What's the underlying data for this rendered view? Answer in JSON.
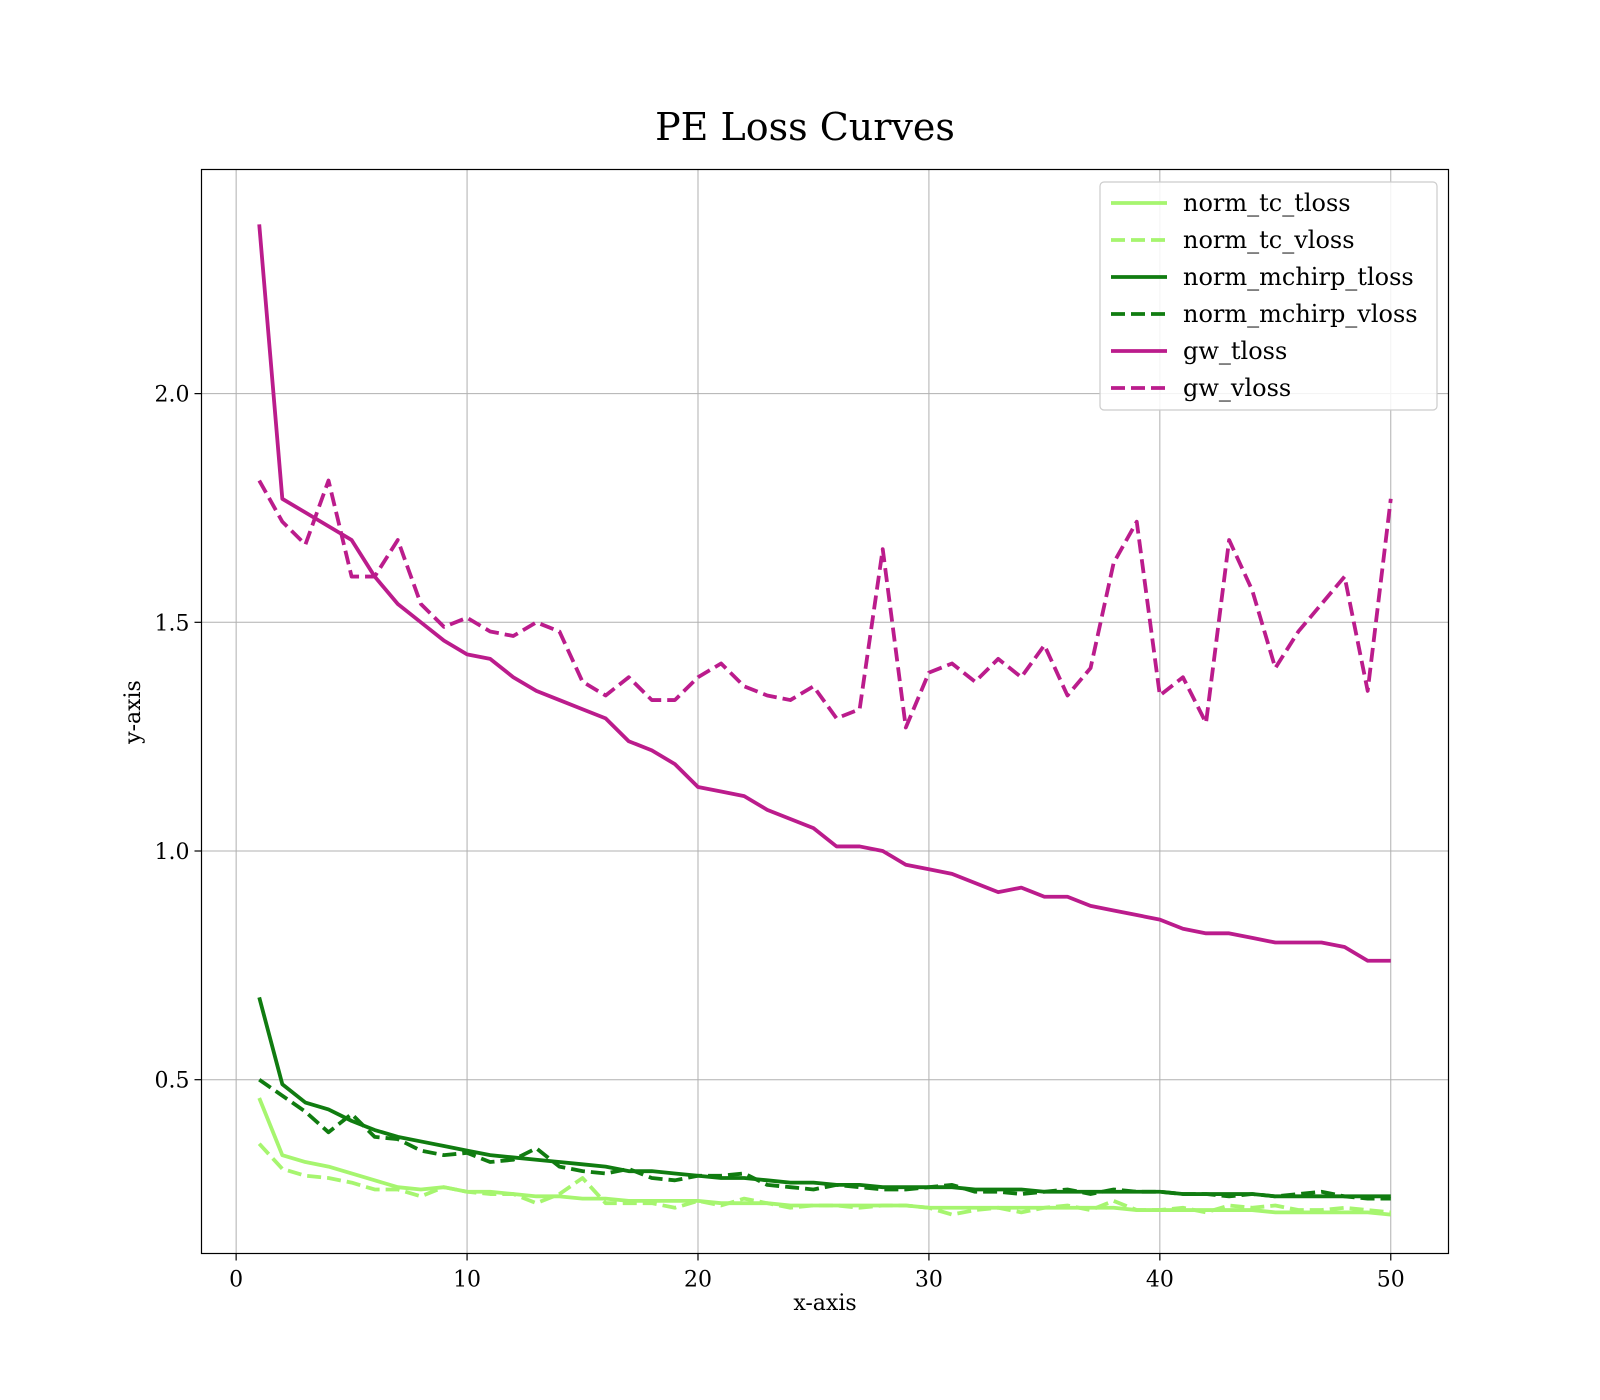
{
  "chart_data": {
    "type": "line",
    "title": "PE Loss Curves",
    "xlabel": "x-axis",
    "ylabel": "y-axis",
    "xlim": [
      -1.5,
      52.5
    ],
    "ylim": [
      0.12,
      2.49
    ],
    "grid": true,
    "legend_placement": "top-right",
    "x_ticks": [
      0,
      10,
      20,
      30,
      40,
      50
    ],
    "y_ticks": [
      0.5,
      1.0,
      1.5,
      2.0
    ],
    "x": [
      1,
      2,
      3,
      4,
      5,
      6,
      7,
      8,
      9,
      10,
      11,
      12,
      13,
      14,
      15,
      16,
      17,
      18,
      19,
      20,
      21,
      22,
      23,
      24,
      25,
      26,
      27,
      28,
      29,
      30,
      31,
      32,
      33,
      34,
      35,
      36,
      37,
      38,
      39,
      40,
      41,
      42,
      43,
      44,
      45,
      46,
      47,
      48,
      49,
      50
    ],
    "series": [
      {
        "name": "norm_tc_tloss",
        "color": "#a6f56f",
        "dash": "solid",
        "values": [
          0.46,
          0.335,
          0.32,
          0.31,
          0.295,
          0.28,
          0.265,
          0.26,
          0.265,
          0.255,
          0.255,
          0.25,
          0.245,
          0.245,
          0.24,
          0.24,
          0.235,
          0.235,
          0.235,
          0.235,
          0.23,
          0.23,
          0.23,
          0.225,
          0.225,
          0.225,
          0.225,
          0.225,
          0.225,
          0.22,
          0.22,
          0.22,
          0.22,
          0.22,
          0.22,
          0.22,
          0.22,
          0.22,
          0.215,
          0.215,
          0.215,
          0.215,
          0.215,
          0.215,
          0.21,
          0.21,
          0.21,
          0.21,
          0.21,
          0.205
        ]
      },
      {
        "name": "norm_tc_vloss",
        "color": "#a6f56f",
        "dash": "dashed",
        "values": [
          0.36,
          0.305,
          0.29,
          0.285,
          0.275,
          0.26,
          0.26,
          0.245,
          0.265,
          0.255,
          0.25,
          0.25,
          0.23,
          0.25,
          0.285,
          0.23,
          0.23,
          0.23,
          0.22,
          0.235,
          0.225,
          0.24,
          0.23,
          0.22,
          0.225,
          0.225,
          0.22,
          0.225,
          0.225,
          0.22,
          0.205,
          0.215,
          0.22,
          0.21,
          0.22,
          0.225,
          0.215,
          0.235,
          0.215,
          0.215,
          0.22,
          0.21,
          0.225,
          0.22,
          0.225,
          0.215,
          0.215,
          0.22,
          0.215,
          0.21
        ]
      },
      {
        "name": "norm_mchirp_tloss",
        "color": "#107c10",
        "dash": "solid",
        "values": [
          0.68,
          0.49,
          0.45,
          0.435,
          0.41,
          0.39,
          0.375,
          0.365,
          0.355,
          0.345,
          0.335,
          0.33,
          0.325,
          0.32,
          0.315,
          0.31,
          0.3,
          0.3,
          0.295,
          0.29,
          0.285,
          0.285,
          0.28,
          0.275,
          0.275,
          0.27,
          0.27,
          0.265,
          0.265,
          0.265,
          0.265,
          0.26,
          0.26,
          0.26,
          0.255,
          0.255,
          0.255,
          0.255,
          0.255,
          0.255,
          0.25,
          0.25,
          0.25,
          0.25,
          0.245,
          0.245,
          0.245,
          0.245,
          0.245,
          0.245
        ]
      },
      {
        "name": "norm_mchirp_vloss",
        "color": "#107c10",
        "dash": "dashed",
        "values": [
          0.5,
          0.465,
          0.43,
          0.385,
          0.425,
          0.375,
          0.37,
          0.345,
          0.335,
          0.34,
          0.32,
          0.325,
          0.35,
          0.31,
          0.3,
          0.295,
          0.305,
          0.285,
          0.28,
          0.29,
          0.29,
          0.295,
          0.27,
          0.265,
          0.26,
          0.27,
          0.265,
          0.26,
          0.26,
          0.265,
          0.27,
          0.255,
          0.255,
          0.25,
          0.255,
          0.26,
          0.25,
          0.26,
          0.255,
          0.255,
          0.25,
          0.25,
          0.245,
          0.25,
          0.245,
          0.25,
          0.255,
          0.245,
          0.24,
          0.24
        ]
      },
      {
        "name": "gw_tloss",
        "color": "#bb1c8c",
        "dash": "solid",
        "values": [
          2.37,
          1.77,
          1.74,
          1.71,
          1.68,
          1.6,
          1.54,
          1.5,
          1.46,
          1.43,
          1.42,
          1.38,
          1.35,
          1.33,
          1.31,
          1.29,
          1.24,
          1.22,
          1.19,
          1.14,
          1.13,
          1.12,
          1.09,
          1.07,
          1.05,
          1.01,
          1.01,
          1.0,
          0.97,
          0.96,
          0.95,
          0.93,
          0.91,
          0.92,
          0.9,
          0.9,
          0.88,
          0.87,
          0.86,
          0.85,
          0.83,
          0.82,
          0.82,
          0.81,
          0.8,
          0.8,
          0.8,
          0.79,
          0.76,
          0.76
        ]
      },
      {
        "name": "gw_vloss",
        "color": "#bb1c8c",
        "dash": "dashed",
        "values": [
          1.81,
          1.72,
          1.67,
          1.81,
          1.6,
          1.6,
          1.68,
          1.54,
          1.49,
          1.51,
          1.48,
          1.47,
          1.5,
          1.48,
          1.37,
          1.34,
          1.38,
          1.33,
          1.33,
          1.38,
          1.41,
          1.36,
          1.34,
          1.33,
          1.36,
          1.29,
          1.31,
          1.66,
          1.27,
          1.39,
          1.41,
          1.37,
          1.42,
          1.38,
          1.45,
          1.34,
          1.4,
          1.63,
          1.72,
          1.34,
          1.38,
          1.28,
          1.68,
          1.57,
          1.4,
          1.48,
          1.54,
          1.6,
          1.35,
          1.77
        ]
      }
    ]
  }
}
